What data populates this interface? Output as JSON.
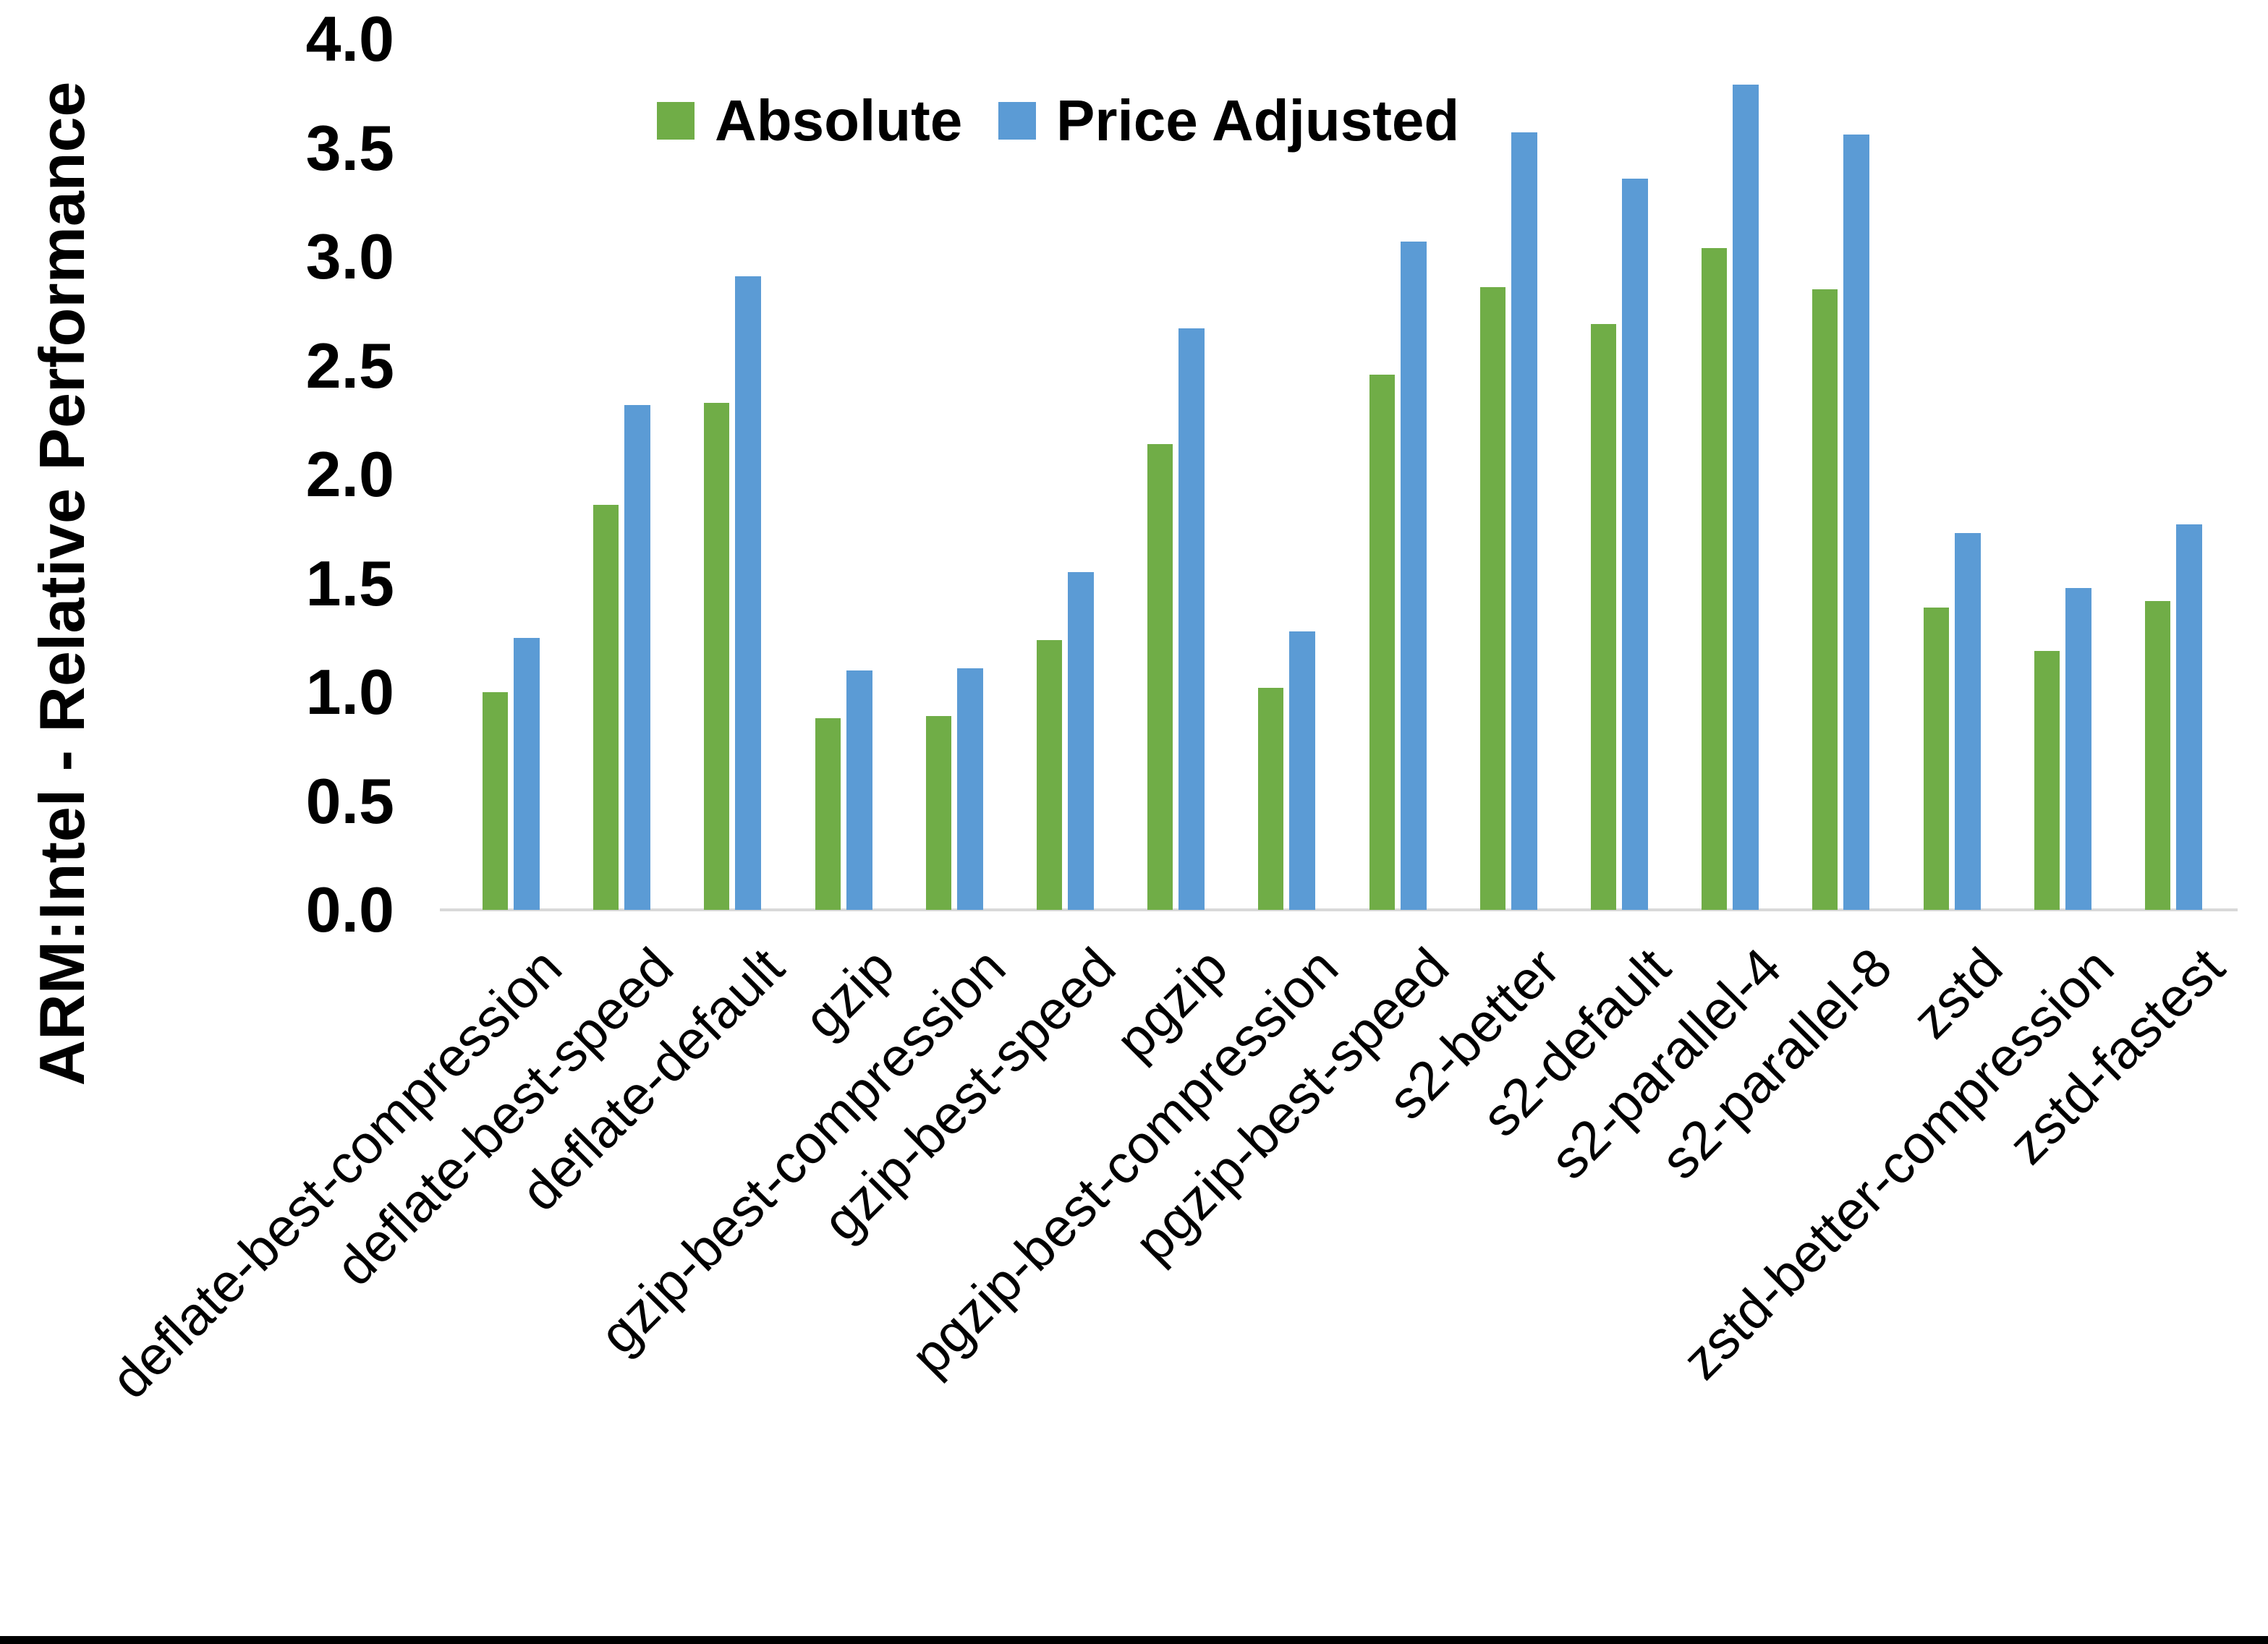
{
  "chart_data": {
    "type": "bar",
    "title": "",
    "ylabel": "ARM:Intel - Relative Performance",
    "xlabel": "",
    "ylim": [
      0.0,
      4.0
    ],
    "ytick_step": 0.5,
    "yticks": [
      "0.0",
      "0.5",
      "1.0",
      "1.5",
      "2.0",
      "2.5",
      "3.0",
      "3.5",
      "4.0"
    ],
    "grid": false,
    "legend_position": "top-inside",
    "categories": [
      "deflate-best-compression",
      "deflate-best-speed",
      "deflate-default",
      "gzip",
      "gzip-best-compression",
      "gzip-best-speed",
      "pgzip",
      "pgzip-best-compression",
      "pgzip-best-speed",
      "s2-better",
      "s2-default",
      "s2-parallel-4",
      "s2-parallel-8",
      "zstd",
      "zstd-better-compression",
      "zstd-fastest"
    ],
    "series": [
      {
        "name": "Absolute",
        "color": "#70ad47",
        "values": [
          1.0,
          1.86,
          2.33,
          0.88,
          0.89,
          1.24,
          2.14,
          1.02,
          2.46,
          2.86,
          2.69,
          3.04,
          2.85,
          1.39,
          1.19,
          1.42
        ]
      },
      {
        "name": "Price Adjusted",
        "color": "#5b9bd5",
        "values": [
          1.25,
          2.32,
          2.91,
          1.1,
          1.11,
          1.55,
          2.67,
          1.28,
          3.07,
          3.57,
          3.36,
          3.79,
          3.56,
          1.73,
          1.48,
          1.77
        ]
      }
    ]
  },
  "colors": {
    "axis_line": "#d9d9d9",
    "text": "#000000",
    "background": "#ffffff",
    "bottom_bar": "#000000"
  }
}
